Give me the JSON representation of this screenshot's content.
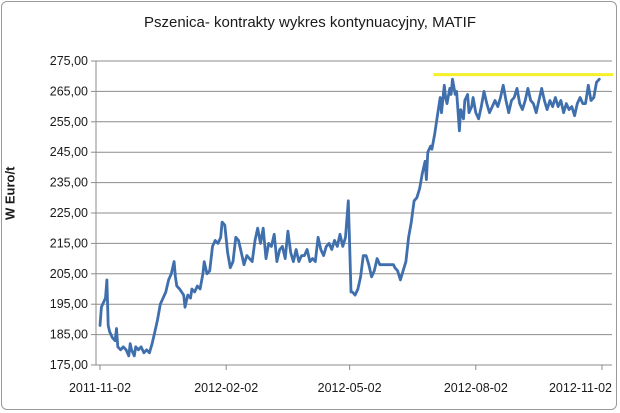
{
  "chart_data": {
    "type": "line",
    "title": "Pszenica- kontrakty wykres kontynuacyjny, MATIF",
    "xlabel": "",
    "ylabel": "W Euro/t",
    "ylim": [
      175,
      275
    ],
    "y_ticks": [
      "175,00",
      "185,00",
      "195,00",
      "205,00",
      "215,00",
      "225,00",
      "235,00",
      "245,00",
      "255,00",
      "265,00",
      "275,00"
    ],
    "x_tick_labels": [
      "2011-11-02",
      "2012-02-02",
      "2012-05-02",
      "2012-08-02",
      "2012-11-02"
    ],
    "x_domain": [
      "2011-11-02",
      "2012-11-02"
    ],
    "grid": "horizontal",
    "line_color": "#3f6fad",
    "reference_line": {
      "y": 270.5,
      "x_start": "2012-07-02",
      "x_end": "2012-11-02",
      "color": "#f5f02a"
    },
    "series": [
      {
        "points": [
          [
            "2011-11-02",
            188
          ],
          [
            "2011-11-03",
            194
          ],
          [
            "2011-11-04",
            195
          ],
          [
            "2011-11-06",
            197
          ],
          [
            "2011-11-07",
            203
          ],
          [
            "2011-11-08",
            188
          ],
          [
            "2011-11-09",
            186
          ],
          [
            "2011-11-10",
            185
          ],
          [
            "2011-11-11",
            184
          ],
          [
            "2011-11-13",
            183
          ],
          [
            "2011-11-14",
            187
          ],
          [
            "2011-11-15",
            181
          ],
          [
            "2011-11-17",
            180
          ],
          [
            "2011-11-19",
            181
          ],
          [
            "2011-11-21",
            180
          ],
          [
            "2011-11-23",
            178
          ],
          [
            "2011-11-24",
            182
          ],
          [
            "2011-11-25",
            180
          ],
          [
            "2011-11-27",
            178
          ],
          [
            "2011-11-28",
            181
          ],
          [
            "2011-11-30",
            180
          ],
          [
            "2011-12-02",
            181
          ],
          [
            "2011-12-04",
            179
          ],
          [
            "2011-12-06",
            180
          ],
          [
            "2011-12-08",
            179
          ],
          [
            "2011-12-10",
            182
          ],
          [
            "2011-12-12",
            186
          ],
          [
            "2011-12-14",
            190
          ],
          [
            "2011-12-16",
            195
          ],
          [
            "2011-12-18",
            197
          ],
          [
            "2011-12-20",
            199
          ],
          [
            "2011-12-22",
            203
          ],
          [
            "2011-12-24",
            205
          ],
          [
            "2011-12-26",
            209
          ],
          [
            "2011-12-27",
            204
          ],
          [
            "2011-12-28",
            201
          ],
          [
            "2011-12-30",
            200
          ],
          [
            "2012-01-02",
            198
          ],
          [
            "2012-01-03",
            194
          ],
          [
            "2012-01-05",
            198
          ],
          [
            "2012-01-07",
            197
          ],
          [
            "2012-01-08",
            200
          ],
          [
            "2012-01-10",
            199
          ],
          [
            "2012-01-12",
            201
          ],
          [
            "2012-01-14",
            200
          ],
          [
            "2012-01-16",
            205
          ],
          [
            "2012-01-17",
            209
          ],
          [
            "2012-01-19",
            205
          ],
          [
            "2012-01-21",
            206
          ],
          [
            "2012-01-23",
            214
          ],
          [
            "2012-01-25",
            216
          ],
          [
            "2012-01-27",
            215
          ],
          [
            "2012-01-29",
            217
          ],
          [
            "2012-01-30",
            222
          ],
          [
            "2012-02-01",
            221
          ],
          [
            "2012-02-03",
            212
          ],
          [
            "2012-02-05",
            207
          ],
          [
            "2012-02-07",
            209
          ],
          [
            "2012-02-09",
            217
          ],
          [
            "2012-02-11",
            216
          ],
          [
            "2012-02-13",
            212
          ],
          [
            "2012-02-15",
            208
          ],
          [
            "2012-02-17",
            211
          ],
          [
            "2012-02-19",
            210
          ],
          [
            "2012-02-21",
            209
          ],
          [
            "2012-02-23",
            216
          ],
          [
            "2012-02-25",
            220
          ],
          [
            "2012-02-27",
            215
          ],
          [
            "2012-02-29",
            220
          ],
          [
            "2012-03-02",
            210
          ],
          [
            "2012-03-04",
            215
          ],
          [
            "2012-03-06",
            214
          ],
          [
            "2012-03-08",
            218
          ],
          [
            "2012-03-10",
            209
          ],
          [
            "2012-03-12",
            213
          ],
          [
            "2012-03-14",
            214
          ],
          [
            "2012-03-16",
            210
          ],
          [
            "2012-03-18",
            219
          ],
          [
            "2012-03-20",
            212
          ],
          [
            "2012-03-22",
            209
          ],
          [
            "2012-03-24",
            213
          ],
          [
            "2012-03-26",
            209
          ],
          [
            "2012-03-28",
            211
          ],
          [
            "2012-03-30",
            211
          ],
          [
            "2012-04-01",
            213
          ],
          [
            "2012-04-03",
            209
          ],
          [
            "2012-04-05",
            210
          ],
          [
            "2012-04-07",
            209
          ],
          [
            "2012-04-09",
            217
          ],
          [
            "2012-04-11",
            213
          ],
          [
            "2012-04-13",
            211
          ],
          [
            "2012-04-15",
            214
          ],
          [
            "2012-04-17",
            215
          ],
          [
            "2012-04-19",
            213
          ],
          [
            "2012-04-21",
            216
          ],
          [
            "2012-04-23",
            214
          ],
          [
            "2012-04-25",
            218
          ],
          [
            "2012-04-27",
            214
          ],
          [
            "2012-04-29",
            217
          ],
          [
            "2012-05-01",
            229
          ],
          [
            "2012-05-02",
            215
          ],
          [
            "2012-05-03",
            199
          ],
          [
            "2012-05-04",
            199
          ],
          [
            "2012-05-06",
            198
          ],
          [
            "2012-05-08",
            200
          ],
          [
            "2012-05-10",
            204
          ],
          [
            "2012-05-12",
            211
          ],
          [
            "2012-05-14",
            211
          ],
          [
            "2012-05-16",
            208
          ],
          [
            "2012-05-18",
            204
          ],
          [
            "2012-05-20",
            206
          ],
          [
            "2012-05-22",
            210
          ],
          [
            "2012-05-24",
            208
          ],
          [
            "2012-05-26",
            208
          ],
          [
            "2012-05-28",
            208
          ],
          [
            "2012-05-30",
            208
          ],
          [
            "2012-06-01",
            208
          ],
          [
            "2012-06-03",
            208
          ],
          [
            "2012-06-04",
            207
          ],
          [
            "2012-06-06",
            206
          ],
          [
            "2012-06-08",
            203
          ],
          [
            "2012-06-10",
            206
          ],
          [
            "2012-06-12",
            209
          ],
          [
            "2012-06-14",
            217
          ],
          [
            "2012-06-16",
            222
          ],
          [
            "2012-06-18",
            229
          ],
          [
            "2012-06-20",
            230
          ],
          [
            "2012-06-22",
            233
          ],
          [
            "2012-06-24",
            238
          ],
          [
            "2012-06-26",
            242
          ],
          [
            "2012-06-27",
            236
          ],
          [
            "2012-06-28",
            245
          ],
          [
            "2012-06-30",
            247
          ],
          [
            "2012-07-01",
            246
          ],
          [
            "2012-07-03",
            251
          ],
          [
            "2012-07-05",
            257
          ],
          [
            "2012-07-07",
            263
          ],
          [
            "2012-07-08",
            258
          ],
          [
            "2012-07-10",
            267
          ],
          [
            "2012-07-11",
            263
          ],
          [
            "2012-07-12",
            261
          ],
          [
            "2012-07-14",
            266
          ],
          [
            "2012-07-15",
            264
          ],
          [
            "2012-07-16",
            269
          ],
          [
            "2012-07-18",
            264
          ],
          [
            "2012-07-19",
            265
          ],
          [
            "2012-07-21",
            252
          ],
          [
            "2012-07-22",
            259
          ],
          [
            "2012-07-24",
            256
          ],
          [
            "2012-07-25",
            262
          ],
          [
            "2012-07-27",
            264
          ],
          [
            "2012-07-28",
            258
          ],
          [
            "2012-07-30",
            260
          ],
          [
            "2012-07-31",
            263
          ],
          [
            "2012-08-02",
            258
          ],
          [
            "2012-08-04",
            256
          ],
          [
            "2012-08-06",
            260
          ],
          [
            "2012-08-08",
            265
          ],
          [
            "2012-08-10",
            261
          ],
          [
            "2012-08-12",
            258
          ],
          [
            "2012-08-14",
            260
          ],
          [
            "2012-08-16",
            262
          ],
          [
            "2012-08-18",
            260
          ],
          [
            "2012-08-20",
            263
          ],
          [
            "2012-08-22",
            267
          ],
          [
            "2012-08-24",
            262
          ],
          [
            "2012-08-26",
            258
          ],
          [
            "2012-08-28",
            262
          ],
          [
            "2012-08-30",
            263
          ],
          [
            "2012-09-01",
            266
          ],
          [
            "2012-09-03",
            261
          ],
          [
            "2012-09-05",
            259
          ],
          [
            "2012-09-07",
            262
          ],
          [
            "2012-09-09",
            266
          ],
          [
            "2012-09-11",
            262
          ],
          [
            "2012-09-13",
            261
          ],
          [
            "2012-09-15",
            258
          ],
          [
            "2012-09-17",
            262
          ],
          [
            "2012-09-19",
            266
          ],
          [
            "2012-09-21",
            262
          ],
          [
            "2012-09-23",
            259
          ],
          [
            "2012-09-25",
            262
          ],
          [
            "2012-09-27",
            260
          ],
          [
            "2012-09-29",
            263
          ],
          [
            "2012-10-01",
            260
          ],
          [
            "2012-10-03",
            262
          ],
          [
            "2012-10-05",
            258
          ],
          [
            "2012-10-07",
            261
          ],
          [
            "2012-10-09",
            259
          ],
          [
            "2012-10-11",
            260
          ],
          [
            "2012-10-13",
            257
          ],
          [
            "2012-10-15",
            261
          ],
          [
            "2012-10-17",
            263
          ],
          [
            "2012-10-19",
            261
          ],
          [
            "2012-10-21",
            261
          ],
          [
            "2012-10-23",
            267
          ],
          [
            "2012-10-25",
            262
          ],
          [
            "2012-10-27",
            263
          ],
          [
            "2012-10-29",
            268
          ],
          [
            "2012-10-31",
            269
          ]
        ]
      }
    ]
  }
}
